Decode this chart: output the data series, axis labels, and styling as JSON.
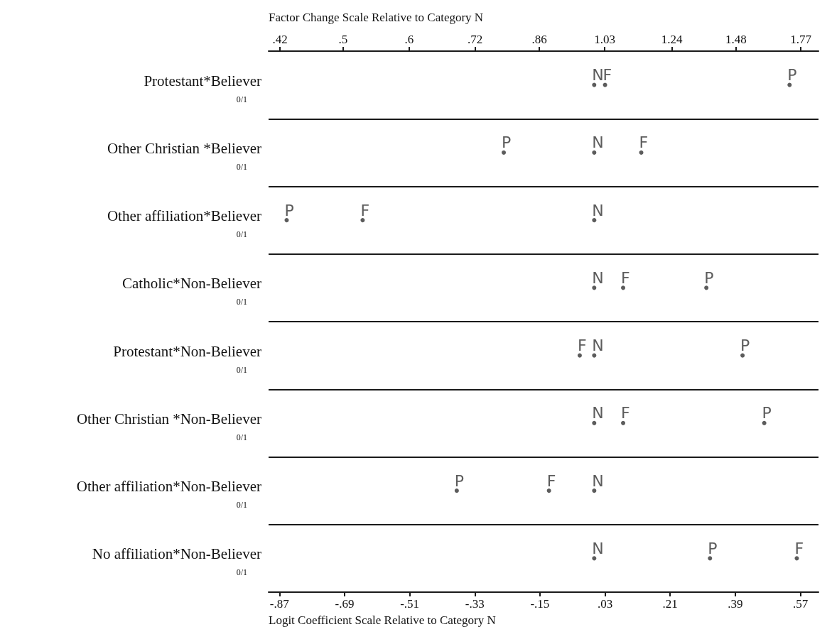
{
  "chart_data": {
    "type": "scatter",
    "orientation": "horizontal",
    "categories": [
      "Protestant*Believer\n0/1",
      "Other Christian *Believer\n0/1",
      "Other affiliation*Believer\n0/1",
      "Catholic*Non-Believer\n0/1",
      "Protestant*Non-Believer\n0/1",
      "Other Christian *Non-Believer\n0/1",
      "Other affiliation*Non-Believer\n0/1",
      "No affiliation*Non-Believer\n0/1"
    ],
    "series": [
      {
        "name": "N",
        "color": "#333333",
        "values": [
          0,
          0,
          0,
          0,
          0,
          0,
          0,
          0
        ]
      },
      {
        "name": "F",
        "color": "#333333",
        "values": [
          0.03,
          0.13,
          -0.64,
          0.08,
          -0.04,
          0.08,
          -0.125,
          0.56
        ]
      },
      {
        "name": "P",
        "color": "#333333",
        "values": [
          0.54,
          -0.25,
          -0.85,
          0.31,
          0.41,
          0.47,
          -0.38,
          0.32
        ]
      }
    ],
    "xlim": [
      -0.9,
      0.62
    ],
    "xticks": [
      {
        "value": -0.87,
        "label": "-.87"
      },
      {
        "value": -0.69,
        "label": "-.69"
      },
      {
        "value": -0.51,
        "label": "-.51"
      },
      {
        "value": -0.33,
        "label": "-.33"
      },
      {
        "value": -0.15,
        "label": "-.15"
      },
      {
        "value": 0.03,
        "label": ".03"
      },
      {
        "value": 0.21,
        "label": ".21"
      },
      {
        "value": 0.39,
        "label": ".39"
      },
      {
        "value": 0.57,
        "label": ".57"
      }
    ],
    "x2lim": [
      0.407,
      1.859
    ],
    "x2ticks": [
      {
        "value": 0.42,
        "label": ".42"
      },
      {
        "value": 0.5,
        "label": ".5"
      },
      {
        "value": 0.6,
        "label": ".6"
      },
      {
        "value": 0.72,
        "label": ".72"
      },
      {
        "value": 0.86,
        "label": ".86"
      },
      1.03,
      1.24,
      1.48,
      1.77
    ],
    "log": "x2",
    "xlabel": "Logit Coefficient Scale Relative to Category N",
    "x2label": "Factor Change Scale Relative to Category N",
    "grid": "y",
    "legend": false
  }
}
